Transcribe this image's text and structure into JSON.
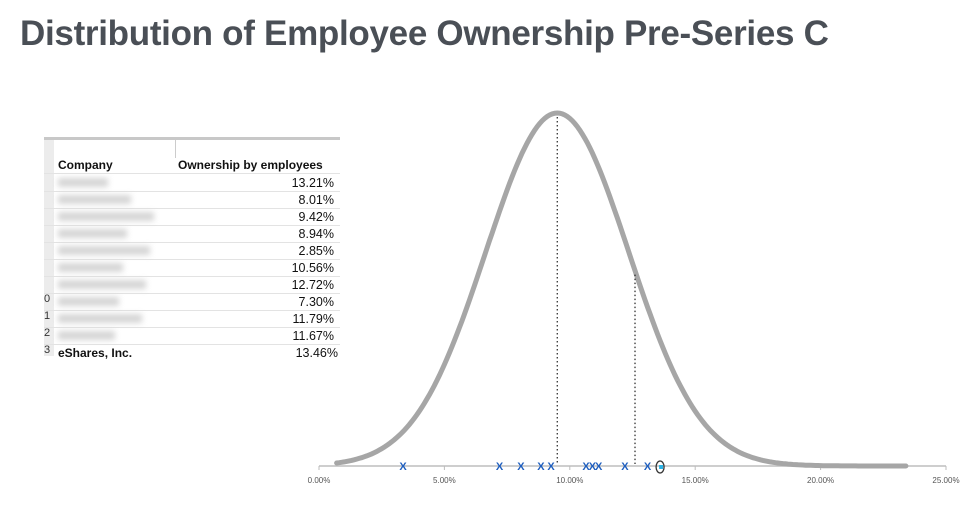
{
  "title": "Distribution of Employee Ownership Pre-Series C",
  "table": {
    "headers": [
      "Company",
      "Ownership by employees"
    ],
    "rows": [
      {
        "company": "",
        "value": "13.21%"
      },
      {
        "company": "",
        "value": "8.01%"
      },
      {
        "company": "",
        "value": "9.42%"
      },
      {
        "company": "",
        "value": "8.94%"
      },
      {
        "company": "",
        "value": "2.85%"
      },
      {
        "company": "",
        "value": "10.56%"
      },
      {
        "company": "",
        "value": "12.72%"
      },
      {
        "company": "",
        "value": "7.30%"
      },
      {
        "company": "",
        "value": "11.79%"
      },
      {
        "company": "",
        "value": "11.67%"
      },
      {
        "company": "eShares, Inc.",
        "value": "13.46%"
      }
    ],
    "row_numbers": [
      "",
      "",
      "",
      "",
      "",
      "",
      "",
      "0",
      "1",
      "2",
      "3"
    ]
  },
  "chart_data": {
    "type": "line",
    "title": "",
    "xlabel": "",
    "ylabel": "",
    "xlim": [
      0,
      25
    ],
    "x_ticks": [
      "0.00%",
      "5.00%",
      "10.00%",
      "15.00%",
      "20.00%",
      "25.00%"
    ],
    "grid": false,
    "curve": {
      "kind": "normal",
      "mean": 9.5,
      "sd": 2.85,
      "x_range": [
        0.7,
        23.4
      ],
      "color": "#a6a6a6"
    },
    "reference_lines": [
      9.5,
      12.6
    ],
    "markers": {
      "symbol": "X",
      "color": "#1f5fbf",
      "x": [
        3.35,
        7.2,
        8.05,
        8.85,
        9.25,
        10.65,
        10.9,
        11.15,
        12.2,
        13.1
      ]
    },
    "highlight": {
      "x": 13.6,
      "color": "#2ab3e6"
    }
  }
}
